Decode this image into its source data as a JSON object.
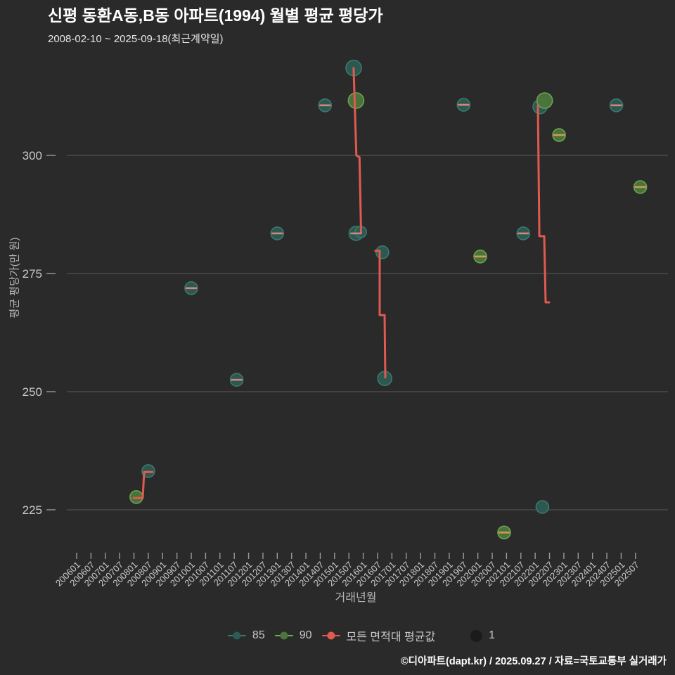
{
  "header": {
    "title": "신평 동환A동,B동 아파트(1994) 월별 평균 평당가",
    "subtitle": "2008-02-10 ~ 2025-09-18(최근계약일)"
  },
  "chart_data": {
    "type": "scatter",
    "title": "신평 동환A동,B동 아파트(1994) 월별 평균 평당가",
    "xlabel": "거래년월",
    "ylabel": "평균 평당가(만 원)",
    "y_ticks": [
      300,
      275,
      250,
      225
    ],
    "ylim": [
      216,
      321
    ],
    "grid": "horizontal-only",
    "legend_position": "bottom-center",
    "x_tick_labels": [
      "200601",
      "200607",
      "200701",
      "200707",
      "200801",
      "200807",
      "200901",
      "200907",
      "201001",
      "201007",
      "201101",
      "201107",
      "201201",
      "201207",
      "201301",
      "201307",
      "201401",
      "201407",
      "201501",
      "201507",
      "201601",
      "201607",
      "201701",
      "201707",
      "201801",
      "201807",
      "201901",
      "201907",
      "202001",
      "202007",
      "202101",
      "202107",
      "202201",
      "202207",
      "202301",
      "202307",
      "202401",
      "202407",
      "202501",
      "202507"
    ],
    "series": [
      {
        "name": "85",
        "type": "scatter",
        "color_key": "teal",
        "points": [
          {
            "month": "200807",
            "value": 233.2,
            "r": 9,
            "dash": false
          },
          {
            "month": "201001",
            "value": 271.9,
            "r": 9,
            "dash": true
          },
          {
            "month": "201108",
            "value": 252.5,
            "r": 9,
            "dash": true
          },
          {
            "month": "201301",
            "value": 283.5,
            "r": 9,
            "dash": true
          },
          {
            "month": "201409",
            "value": 310.6,
            "r": 9,
            "dash": true
          },
          {
            "month": "201509",
            "value": 318.5,
            "r": 11,
            "dash": false
          },
          {
            "month": "201510",
            "value": 283.5,
            "r": 10,
            "dash": true
          },
          {
            "month": "201512",
            "value": 283.8,
            "r": 8,
            "dash": false
          },
          {
            "month": "201609",
            "value": 279.5,
            "r": 9,
            "dash": false
          },
          {
            "month": "201610",
            "value": 252.8,
            "r": 10,
            "dash": false
          },
          {
            "month": "201907",
            "value": 310.7,
            "r": 9,
            "dash": true
          },
          {
            "month": "202108",
            "value": 283.5,
            "r": 9,
            "dash": true
          },
          {
            "month": "202203",
            "value": 310.3,
            "r": 10,
            "dash": false
          },
          {
            "month": "202204",
            "value": 225.6,
            "r": 9,
            "dash": false
          },
          {
            "month": "202411",
            "value": 310.6,
            "r": 9,
            "dash": true
          }
        ]
      },
      {
        "name": "90",
        "type": "scatter",
        "color_key": "green",
        "points": [
          {
            "month": "200802",
            "value": 227.7,
            "r": 9,
            "dash": false
          },
          {
            "month": "201510",
            "value": 311.6,
            "r": 11,
            "dash": false
          },
          {
            "month": "202002",
            "value": 278.6,
            "r": 9,
            "dash": true
          },
          {
            "month": "202012",
            "value": 220.2,
            "r": 9,
            "dash": true
          },
          {
            "month": "202205",
            "value": 311.6,
            "r": 11,
            "dash": false
          },
          {
            "month": "202211",
            "value": 304.3,
            "r": 9,
            "dash": true
          },
          {
            "month": "202509",
            "value": 293.3,
            "r": 9,
            "dash": true
          }
        ]
      },
      {
        "name": "모든 면적대 평균값",
        "type": "line",
        "color_key": "red",
        "segments_k_value": [
          [
            [
              3.97,
              227.5
            ],
            [
              4.61,
              227.5
            ],
            [
              4.71,
              233.0
            ],
            [
              5.3,
              233.0
            ]
          ],
          [
            [
              19.33,
              318.5
            ],
            [
              19.52,
              300.0
            ],
            [
              19.74,
              299.6
            ],
            [
              19.85,
              283.7
            ]
          ],
          [
            [
              20.85,
              279.8
            ],
            [
              21.15,
              279.8
            ],
            [
              21.15,
              266.2
            ],
            [
              21.49,
              266.2
            ],
            [
              21.54,
              253.0
            ]
          ],
          [
            [
              32.19,
              310.6
            ],
            [
              32.29,
              282.9
            ],
            [
              32.63,
              282.9
            ],
            [
              32.73,
              268.9
            ],
            [
              32.97,
              268.9
            ]
          ]
        ]
      }
    ],
    "size_legend": {
      "label": "1"
    }
  },
  "legend": {
    "items": [
      {
        "label": "85"
      },
      {
        "label": "90"
      },
      {
        "label": "모든 면적대 평균값"
      },
      {
        "label": "1"
      }
    ]
  },
  "footer": {
    "credit": "©디아파트(dapt.kr) / 2025.09.27 / 자료=국토교통부 실거래가"
  },
  "colors": {
    "background": "#2a2a2a",
    "teal_fill": "#2c5b54",
    "teal_stroke": "#3e776c",
    "teal_legend": "#2f7d72",
    "green_fill": "#4c763c",
    "green_stroke": "#6ca352",
    "green_legend": "#6fae57",
    "red": "#e05a50",
    "grid": "#515151",
    "tick_mark": "#9a9a9a",
    "tick_text": "#c9c9c9",
    "axis_title": "#b5b5b5",
    "legend_text": "#c9c9c9",
    "title_text": "#ffffff",
    "subtitle_text": "#e6e6e6",
    "footer_text": "#ffffff",
    "size_legend_dot": "#1b1b1b",
    "dash_on_teal": "#d8837d",
    "dash_on_green": "#cf9a55"
  }
}
